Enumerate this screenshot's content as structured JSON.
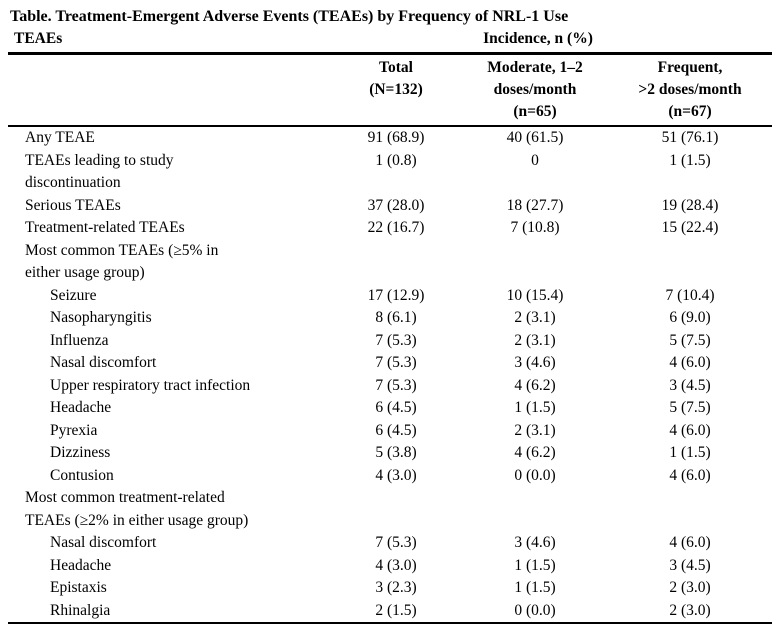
{
  "title": "Table. Treatment-Emergent Adverse Events (TEAEs) by Frequency of NRL-1 Use",
  "table": {
    "stub_header": "TEAEs",
    "incidence_spanner": "Incidence, n (%)",
    "columns": [
      {
        "label": "Total\n(N=132)"
      },
      {
        "label": "Moderate, 1–2\ndoses/month\n(n=65)"
      },
      {
        "label": "Frequent,\n>2 doses/month\n(n=67)"
      }
    ],
    "rows": [
      {
        "label": "Any TEAE",
        "indent": 0,
        "values": [
          "91 (68.9)",
          "40 (61.5)",
          "51 (76.1)"
        ]
      },
      {
        "label": "TEAEs leading to study\ndiscontinuation",
        "indent": 0,
        "values": [
          "1 (0.8)",
          "0",
          "1 (1.5)"
        ]
      },
      {
        "label": "Serious TEAEs",
        "indent": 0,
        "values": [
          "37 (28.0)",
          "18 (27.7)",
          "19 (28.4)"
        ]
      },
      {
        "label": "Treatment-related TEAEs",
        "indent": 0,
        "values": [
          "22 (16.7)",
          "7 (10.8)",
          "15 (22.4)"
        ]
      },
      {
        "label": "Most common TEAEs (≥5% in\neither usage group)",
        "indent": 0,
        "values": [
          "",
          "",
          ""
        ]
      },
      {
        "label": "Seizure",
        "indent": 1,
        "values": [
          "17 (12.9)",
          "10 (15.4)",
          "7 (10.4)"
        ]
      },
      {
        "label": "Nasopharyngitis",
        "indent": 1,
        "values": [
          "8 (6.1)",
          "2 (3.1)",
          "6 (9.0)"
        ]
      },
      {
        "label": "Influenza",
        "indent": 1,
        "values": [
          "7 (5.3)",
          "2 (3.1)",
          "5 (7.5)"
        ]
      },
      {
        "label": "Nasal discomfort",
        "indent": 1,
        "values": [
          "7 (5.3)",
          "3 (4.6)",
          "4 (6.0)"
        ]
      },
      {
        "label": "Upper respiratory tract infection",
        "indent": 1,
        "values": [
          "7 (5.3)",
          "4 (6.2)",
          "3 (4.5)"
        ]
      },
      {
        "label": "Headache",
        "indent": 1,
        "values": [
          "6 (4.5)",
          "1 (1.5)",
          "5 (7.5)"
        ]
      },
      {
        "label": "Pyrexia",
        "indent": 1,
        "values": [
          "6 (4.5)",
          "2 (3.1)",
          "4 (6.0)"
        ]
      },
      {
        "label": "Dizziness",
        "indent": 1,
        "values": [
          "5 (3.8)",
          "4 (6.2)",
          "1 (1.5)"
        ]
      },
      {
        "label": "Contusion",
        "indent": 1,
        "values": [
          "4 (3.0)",
          "0 (0.0)",
          "4 (6.0)"
        ]
      },
      {
        "label": "Most common treatment-related\nTEAEs (≥2% in either usage group)",
        "indent": 0,
        "values": [
          "",
          "",
          ""
        ]
      },
      {
        "label": "Nasal discomfort",
        "indent": 1,
        "values": [
          "7 (5.3)",
          "3 (4.6)",
          "4 (6.0)"
        ]
      },
      {
        "label": "Headache",
        "indent": 1,
        "values": [
          "4 (3.0)",
          "1 (1.5)",
          "3 (4.5)"
        ]
      },
      {
        "label": "Epistaxis",
        "indent": 1,
        "values": [
          "3 (2.3)",
          "1 (1.5)",
          "2 (3.0)"
        ]
      },
      {
        "label": "Rhinalgia",
        "indent": 1,
        "values": [
          "2 (1.5)",
          "0 (0.0)",
          "2 (3.0)"
        ]
      }
    ]
  }
}
